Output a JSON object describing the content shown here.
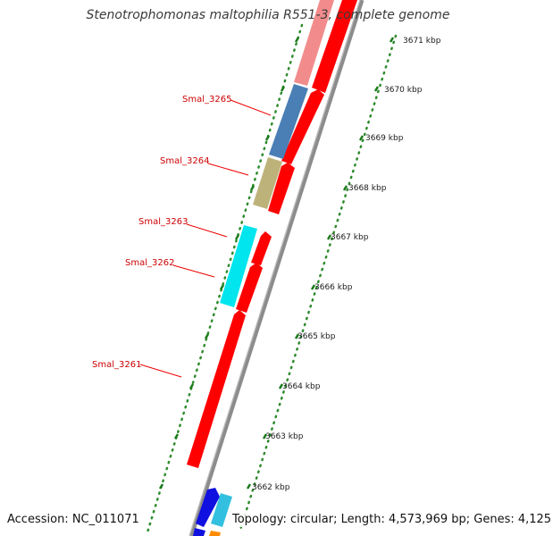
{
  "title": "Stenotrophomonas maltophilia R551-3, complete genome",
  "footer": {
    "accession": "Accession: NC_011071",
    "summary": "Topology: circular; Length: 4,573,969 bp; Genes: 4,125"
  },
  "colors": {
    "backbone": "#8a8a8a",
    "cds_forward": "#ff0000",
    "ruler_dots": "#2e8b2e",
    "label_text": "#cc0000",
    "label_line": "#ee0000"
  },
  "gene_labels": [
    "Smal_3265",
    "Smal_3264",
    "Smal_3263",
    "Smal_3262",
    "Smal_3261"
  ],
  "ruler_labels": [
    "3671 kbp",
    "3670 kbp",
    "3669 kbp",
    "3668 kbp",
    "3667 kbp",
    "3666 kbp",
    "3665 kbp",
    "3664 kbp",
    "3663 kbp",
    "3662 kbp"
  ]
}
